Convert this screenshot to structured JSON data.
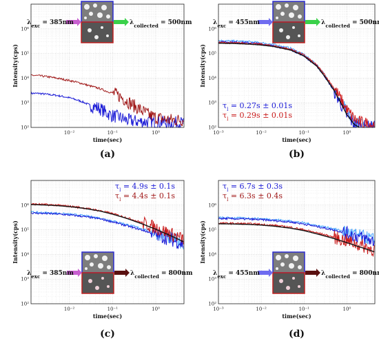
{
  "chart_data": [
    {
      "type": "line",
      "panel_label": "(a)",
      "xlabel": "time(sec)",
      "ylabel": "Intensity(cps)",
      "xscale": "log",
      "yscale": "log",
      "xlim": [
        0.0013,
        4.5
      ],
      "ylim": [
        100,
        10000000
      ],
      "xticks": [
        0.01,
        0.1,
        1
      ],
      "xtick_labels": [
        "10⁻²",
        "10⁻¹",
        "10⁰"
      ],
      "yticks": [
        100,
        1000,
        10000,
        100000,
        1000000
      ],
      "ytick_labels": [
        "10²",
        "10³",
        "10⁴",
        "10⁵",
        "10⁶"
      ],
      "grid": true,
      "annotation": {
        "exc_label": "λ_exc = 385nm",
        "col_label": "λ_collected = 500nm",
        "exc_arrow_color": "#c85fd0",
        "col_arrow_color": "#3ad14a"
      },
      "lifetimes": [],
      "series": [
        {
          "color": "#1a1ad6",
          "x": [
            0.0013,
            0.002,
            0.003,
            0.005,
            0.007,
            0.01,
            0.015,
            0.02,
            0.03,
            0.05,
            0.07,
            0.1,
            0.15,
            0.2,
            0.3,
            0.5,
            0.7,
            1.0,
            1.5,
            2.0,
            3.0,
            4.5
          ],
          "y": [
            2400,
            2400,
            2200,
            2000,
            1800,
            1600,
            1300,
            1100,
            800,
            600,
            400,
            300,
            250,
            200,
            180,
            170,
            170,
            160,
            160,
            150,
            150,
            150
          ],
          "noisy": true,
          "noise_from": 0.03
        },
        {
          "color": "#a01818",
          "x": [
            0.0013,
            0.002,
            0.003,
            0.005,
            0.007,
            0.01,
            0.015,
            0.02,
            0.03,
            0.05,
            0.07,
            0.1,
            0.15,
            0.2,
            0.3,
            0.5,
            0.7,
            1.0,
            1.5,
            2.0,
            3.0,
            4.5
          ],
          "y": [
            13000,
            12500,
            11500,
            10000,
            9000,
            8000,
            6800,
            6000,
            4800,
            3800,
            3000,
            2500,
            1800,
            1300,
            800,
            450,
            320,
            250,
            220,
            200,
            200,
            200
          ],
          "noisy": true,
          "noise_from": 0.1
        }
      ]
    },
    {
      "type": "line",
      "panel_label": "(b)",
      "xlabel": "time(sec)",
      "ylabel": "Intensity(cps)",
      "xscale": "log",
      "yscale": "log",
      "xlim": [
        0.001,
        4.5
      ],
      "ylim": [
        100,
        10000000
      ],
      "xticks": [
        0.001,
        0.01,
        0.1,
        1
      ],
      "xtick_labels": [
        "10⁻³",
        "10⁻²",
        "10⁻¹",
        "10⁰"
      ],
      "yticks": [
        100,
        1000,
        10000,
        100000,
        1000000
      ],
      "ytick_labels": [
        "10²",
        "10³",
        "10⁴",
        "10⁵",
        "10⁶"
      ],
      "grid": true,
      "annotation": {
        "exc_label": "λ_exc = 455nm",
        "col_label": "λ_collected = 500nm",
        "exc_arrow_color": "#6f6cf0",
        "col_arrow_color": "#3ad14a"
      },
      "lifetimes": [
        {
          "text": "τ_l = 0.27s ± 0.01s",
          "color": "#1a1ad6"
        },
        {
          "text": "τ_l = 0.29s ± 0.01s",
          "color": "#c81818"
        }
      ],
      "series": [
        {
          "color": "#4aa6ff",
          "x": [
            0.001,
            0.002,
            0.005,
            0.01,
            0.02,
            0.05,
            0.1,
            0.2,
            0.3,
            0.5,
            0.7,
            1.0,
            1.5,
            2.0,
            3.0,
            4.5
          ],
          "y": [
            330000,
            320000,
            300000,
            270000,
            230000,
            160000,
            90000,
            35000,
            14000,
            3500,
            1200,
            400,
            180,
            130,
            120,
            110
          ],
          "noisy": true,
          "noise_from": 0.5
        },
        {
          "color": "#1a1ad6",
          "x": [
            0.001,
            0.002,
            0.005,
            0.01,
            0.02,
            0.05,
            0.1,
            0.2,
            0.3,
            0.5,
            0.7,
            1.0,
            1.5,
            2.0,
            3.0,
            4.5
          ],
          "y": [
            300000,
            290000,
            270000,
            240000,
            200000,
            140000,
            80000,
            30000,
            12000,
            3000,
            1000,
            300,
            130,
            110,
            105,
            100
          ],
          "noisy": true,
          "noise_from": 0.5
        },
        {
          "color": "#d01818",
          "x": [
            0.001,
            0.002,
            0.005,
            0.01,
            0.02,
            0.05,
            0.1,
            0.2,
            0.3,
            0.5,
            0.7,
            1.0,
            1.5,
            2.0,
            3.0,
            4.5
          ],
          "y": [
            280000,
            270000,
            255000,
            235000,
            200000,
            145000,
            85000,
            33000,
            14000,
            4000,
            1500,
            500,
            220,
            160,
            140,
            130
          ],
          "noisy": true,
          "noise_from": 0.5
        },
        {
          "color": "#111111",
          "x": [
            0.001,
            0.002,
            0.005,
            0.01,
            0.02,
            0.05,
            0.1,
            0.2,
            0.3,
            0.5,
            0.7,
            1.0,
            1.5,
            2.0
          ],
          "y": [
            260000,
            255000,
            240000,
            220000,
            190000,
            135000,
            78000,
            30000,
            12000,
            3200,
            1100,
            330,
            130,
            100
          ],
          "noisy": false
        }
      ]
    },
    {
      "type": "line",
      "panel_label": "(c)",
      "xlabel": "time(sec)",
      "ylabel": "Intensity(cps)",
      "xscale": "log",
      "yscale": "log",
      "xlim": [
        0.0013,
        4.5
      ],
      "ylim": [
        100,
        10000000
      ],
      "xticks": [
        0.01,
        0.1,
        1
      ],
      "xtick_labels": [
        "10⁻²",
        "10⁻¹",
        "10⁰"
      ],
      "yticks": [
        100,
        1000,
        10000,
        100000,
        1000000
      ],
      "ytick_labels": [
        "10²",
        "10³",
        "10⁴",
        "10⁵",
        "10⁶"
      ],
      "grid": true,
      "annotation": {
        "exc_label": "λ_exc = 385nm",
        "col_label": "λ_collected = 800nm",
        "exc_arrow_color": "#c85fd0",
        "col_arrow_color": "#5a1010"
      },
      "lifetimes": [
        {
          "text": "τ_l = 4.9s ± 0.1s",
          "color": "#1a1ad6"
        },
        {
          "text": "τ_l = 4.4s ± 0.1s",
          "color": "#a01818"
        }
      ],
      "series": [
        {
          "color": "#4aa6ff",
          "x": [
            0.0013,
            0.002,
            0.005,
            0.01,
            0.02,
            0.05,
            0.1,
            0.2,
            0.5,
            1.0,
            2.0,
            3.0,
            4.5
          ],
          "y": [
            520000,
            500000,
            470000,
            430000,
            380000,
            300000,
            230000,
            170000,
            110000,
            75000,
            50000,
            38000,
            28000
          ],
          "noisy": true,
          "noise_from": 0.8
        },
        {
          "color": "#1a1ad6",
          "x": [
            0.0013,
            0.002,
            0.005,
            0.01,
            0.02,
            0.05,
            0.1,
            0.2,
            0.5,
            1.0,
            2.0,
            3.0,
            4.5
          ],
          "y": [
            480000,
            465000,
            440000,
            400000,
            350000,
            280000,
            210000,
            150000,
            95000,
            65000,
            42000,
            33000,
            25000
          ],
          "noisy": true,
          "noise_from": 0.8
        },
        {
          "color": "#c81818",
          "x": [
            0.0013,
            0.002,
            0.005,
            0.01,
            0.02,
            0.05,
            0.1,
            0.2,
            0.5,
            1.0,
            2.0,
            3.0,
            4.5
          ],
          "y": [
            1100000,
            1080000,
            1000000,
            900000,
            780000,
            600000,
            450000,
            320000,
            190000,
            120000,
            75000,
            55000,
            40000
          ],
          "noisy": true,
          "noise_from": 0.5
        },
        {
          "color": "#111111",
          "x": [
            0.0013,
            0.002,
            0.005,
            0.01,
            0.02,
            0.05,
            0.1,
            0.2,
            0.5,
            1.0,
            2.0,
            3.0,
            4.5
          ],
          "y": [
            1050000,
            1030000,
            960000,
            870000,
            760000,
            580000,
            430000,
            300000,
            170000,
            105000,
            62000,
            45000,
            32000
          ],
          "noisy": false
        }
      ]
    },
    {
      "type": "line",
      "panel_label": "(d)",
      "xlabel": "time(sec)",
      "ylabel": "Intensity(cps)",
      "xscale": "log",
      "yscale": "log",
      "xlim": [
        0.001,
        4.5
      ],
      "ylim": [
        100,
        10000000
      ],
      "xticks": [
        0.001,
        0.01,
        0.1,
        1
      ],
      "xtick_labels": [
        "10⁻³",
        "10⁻²",
        "10⁻¹",
        "10⁰"
      ],
      "yticks": [
        100,
        1000,
        10000,
        100000,
        1000000
      ],
      "ytick_labels": [
        "10²",
        "10³",
        "10⁴",
        "10⁵",
        "10⁶"
      ],
      "grid": true,
      "annotation": {
        "exc_label": "λ_exc = 455nm",
        "col_label": "λ_collected = 800nm",
        "exc_arrow_color": "#6f6cf0",
        "col_arrow_color": "#5a1010"
      },
      "lifetimes": [
        {
          "text": "τ_l = 6.7s ± 0.3s",
          "color": "#1a1ad6"
        },
        {
          "text": "τ_l = 6.3s ± 0.4s",
          "color": "#a01818"
        }
      ],
      "series": [
        {
          "color": "#4aa6ff",
          "x": [
            0.001,
            0.002,
            0.005,
            0.01,
            0.02,
            0.05,
            0.1,
            0.2,
            0.5,
            1.0,
            2.0,
            3.0,
            4.5
          ],
          "y": [
            310000,
            305000,
            295000,
            280000,
            260000,
            225000,
            190000,
            150000,
            110000,
            80000,
            57000,
            47000,
            38000
          ],
          "noisy": true,
          "noise_from": 0.8
        },
        {
          "color": "#1a1ad6",
          "x": [
            0.001,
            0.002,
            0.005,
            0.01,
            0.02,
            0.05,
            0.1,
            0.2,
            0.5,
            1.0,
            2.0,
            3.0,
            4.5
          ],
          "y": [
            285000,
            280000,
            270000,
            255000,
            235000,
            205000,
            170000,
            135000,
            98000,
            72000,
            50000,
            41000,
            33000
          ],
          "noisy": true,
          "noise_from": 0.8
        },
        {
          "color": "#c81818",
          "x": [
            0.001,
            0.002,
            0.005,
            0.01,
            0.02,
            0.05,
            0.1,
            0.2,
            0.5,
            1.0,
            2.0,
            3.0,
            4.5
          ],
          "y": [
            185000,
            182000,
            175000,
            165000,
            150000,
            125000,
            100000,
            75000,
            50000,
            35000,
            24000,
            19000,
            15000
          ],
          "noisy": true,
          "noise_from": 0.5
        },
        {
          "color": "#111111",
          "x": [
            0.001,
            0.002,
            0.005,
            0.01,
            0.02,
            0.05,
            0.1,
            0.2,
            0.5,
            1.0,
            2.0,
            3.0,
            4.5
          ],
          "y": [
            175000,
            172000,
            165000,
            155000,
            140000,
            115000,
            92000,
            68000,
            44000,
            30000,
            20000,
            16000,
            12500
          ],
          "noisy": false
        }
      ]
    }
  ]
}
